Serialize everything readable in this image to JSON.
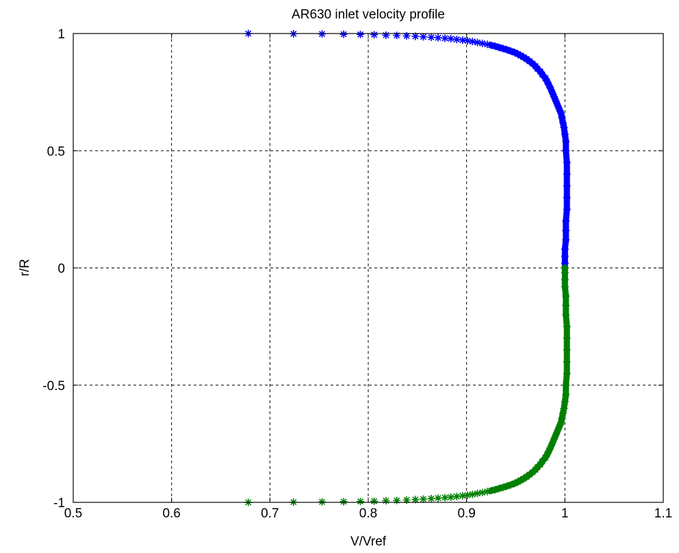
{
  "chart_data": {
    "type": "scatter",
    "title": "AR630 inlet velocity profile",
    "xlabel": "V/Vref",
    "ylabel": "r/R",
    "xlim": [
      0.5,
      1.1
    ],
    "ylim": [
      -1,
      1
    ],
    "xticks": [
      0.5,
      0.6,
      0.7,
      0.8,
      0.9,
      1.0,
      1.1
    ],
    "xtick_labels": [
      "0.5",
      "0.6",
      "0.7",
      "0.8",
      "0.9",
      "1",
      "1.1"
    ],
    "yticks": [
      -1,
      -0.5,
      0,
      0.5,
      1
    ],
    "ytick_labels": [
      "-1",
      "-0.5",
      "0",
      "0.5",
      "1"
    ],
    "grid": true,
    "marker": "*",
    "series": [
      {
        "color": "#0000ff",
        "x": [
          0.678,
          0.724,
          0.753,
          0.775,
          0.792,
          0.806,
          0.818,
          0.829,
          0.839,
          0.848,
          0.856,
          0.864,
          0.871,
          0.878,
          0.884,
          0.89,
          0.896,
          0.901,
          0.906,
          0.911,
          0.916,
          0.921,
          0.925,
          0.929,
          0.933,
          0.937,
          0.941,
          0.945,
          0.949,
          0.952,
          0.955,
          0.958,
          0.961,
          0.964,
          0.967,
          0.97,
          0.972,
          0.975,
          0.977,
          0.98,
          0.982,
          0.984,
          0.986,
          0.988,
          0.99,
          0.992,
          0.994,
          0.996,
          0.997,
          0.998,
          0.999,
          1.0,
          1.001,
          1.001,
          1.002,
          1.002,
          1.002,
          1.002,
          1.002,
          1.001,
          1.001,
          1.001,
          1.0,
          1.0,
          1.0,
          1.0
        ],
        "y": [
          1.0,
          0.999,
          0.998,
          0.997,
          0.996,
          0.995,
          0.993,
          0.992,
          0.99,
          0.988,
          0.986,
          0.984,
          0.982,
          0.98,
          0.978,
          0.975,
          0.972,
          0.969,
          0.966,
          0.962,
          0.958,
          0.954,
          0.95,
          0.946,
          0.941,
          0.936,
          0.931,
          0.925,
          0.919,
          0.913,
          0.906,
          0.899,
          0.891,
          0.882,
          0.872,
          0.861,
          0.85,
          0.838,
          0.825,
          0.81,
          0.795,
          0.778,
          0.76,
          0.74,
          0.72,
          0.7,
          0.68,
          0.66,
          0.64,
          0.62,
          0.6,
          0.57,
          0.54,
          0.5,
          0.45,
          0.4,
          0.35,
          0.3,
          0.25,
          0.2,
          0.16,
          0.12,
          0.08,
          0.05,
          0.02,
          0.0
        ]
      },
      {
        "color": "#007f00",
        "x": [
          0.678,
          0.724,
          0.753,
          0.775,
          0.792,
          0.806,
          0.818,
          0.829,
          0.839,
          0.848,
          0.856,
          0.864,
          0.871,
          0.878,
          0.884,
          0.89,
          0.896,
          0.901,
          0.906,
          0.911,
          0.916,
          0.921,
          0.925,
          0.929,
          0.933,
          0.937,
          0.941,
          0.945,
          0.949,
          0.952,
          0.955,
          0.958,
          0.961,
          0.964,
          0.967,
          0.97,
          0.972,
          0.975,
          0.977,
          0.98,
          0.982,
          0.984,
          0.986,
          0.988,
          0.99,
          0.992,
          0.994,
          0.996,
          0.997,
          0.998,
          0.999,
          1.0,
          1.001,
          1.001,
          1.002,
          1.002,
          1.002,
          1.002,
          1.002,
          1.001,
          1.001,
          1.001,
          1.0,
          1.0,
          1.0,
          1.0
        ],
        "y": [
          -1.0,
          -0.999,
          -0.998,
          -0.997,
          -0.996,
          -0.995,
          -0.993,
          -0.992,
          -0.99,
          -0.988,
          -0.986,
          -0.984,
          -0.982,
          -0.98,
          -0.978,
          -0.975,
          -0.972,
          -0.969,
          -0.966,
          -0.962,
          -0.958,
          -0.954,
          -0.95,
          -0.946,
          -0.941,
          -0.936,
          -0.931,
          -0.925,
          -0.919,
          -0.913,
          -0.906,
          -0.899,
          -0.891,
          -0.882,
          -0.872,
          -0.861,
          -0.85,
          -0.838,
          -0.825,
          -0.81,
          -0.795,
          -0.778,
          -0.76,
          -0.74,
          -0.72,
          -0.7,
          -0.68,
          -0.66,
          -0.64,
          -0.62,
          -0.6,
          -0.57,
          -0.54,
          -0.5,
          -0.45,
          -0.4,
          -0.35,
          -0.3,
          -0.25,
          -0.2,
          -0.16,
          -0.12,
          -0.08,
          -0.05,
          -0.02,
          0.0
        ]
      }
    ]
  }
}
